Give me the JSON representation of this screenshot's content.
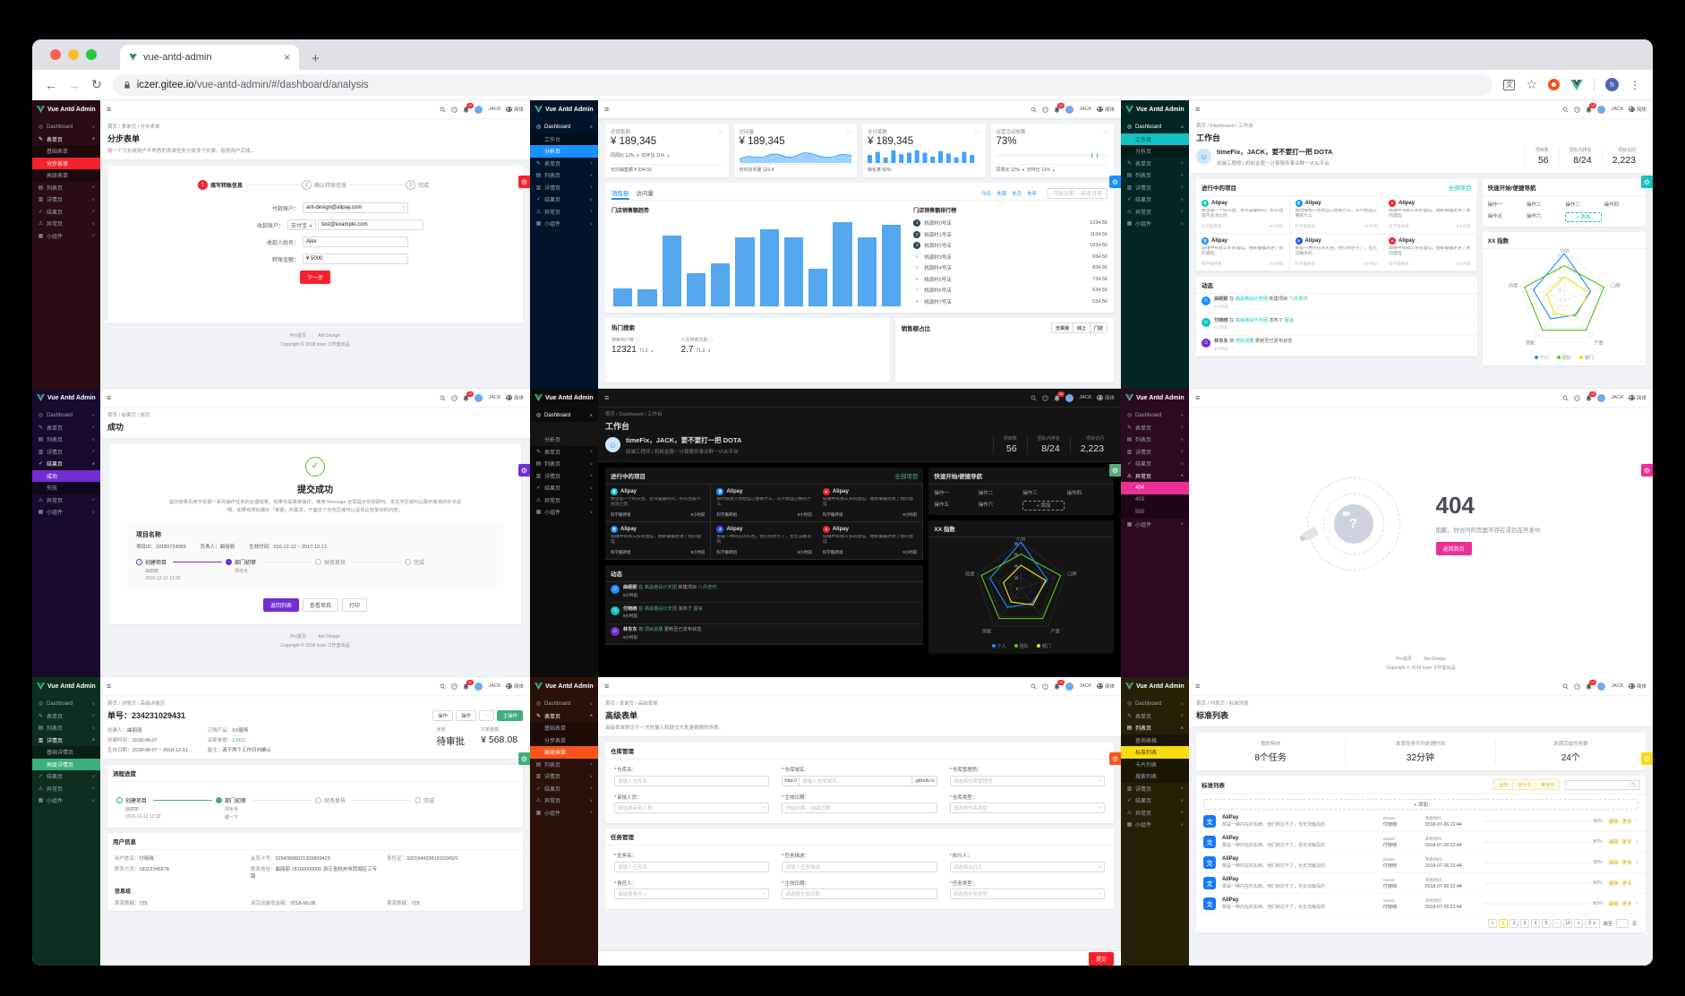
{
  "browser": {
    "tab_title": "vue-antd-admin",
    "url_domain": "iczer.gitee.io",
    "url_path": "/vue-antd-admin/#/dashboard/analysis",
    "avatar": "h",
    "translate_glyph": "文"
  },
  "glyphs": {
    "back": "←",
    "forward": "→",
    "reload": "↻",
    "burger": "≡",
    "kebab": "⋮",
    "star": "☆",
    "plus": "+",
    "close": "×",
    "gear": "⚙",
    "check": "✓",
    "question": "?",
    "smile": "☺",
    "info": "ⓘ",
    "caret": "∨",
    "up": "▲",
    "down": "▼"
  },
  "common": {
    "logo": "Vue Antd Admin",
    "user": "JACK",
    "badge": "12",
    "lang": "简体",
    "footer_home": "Pro首页",
    "footer_brand": "Ant Design",
    "copyright": "Copyright © 2018 iczer 工作室出品"
  },
  "p1": {
    "menu": [
      {
        "icon": "◎",
        "label": "Dashboard",
        "car": "∨"
      },
      {
        "icon": "✎",
        "label": "表单页",
        "car": "∧",
        "cls": "open"
      },
      {
        "label": "基础表单",
        "cls": "sub"
      },
      {
        "label": "分步表单",
        "cls": "sub active"
      },
      {
        "label": "高级表单",
        "cls": "sub"
      },
      {
        "icon": "▤",
        "label": "列表页",
        "car": "∨"
      },
      {
        "icon": "▥",
        "label": "详情页",
        "car": "∨"
      },
      {
        "icon": "✓",
        "label": "结果页",
        "car": "∨"
      },
      {
        "icon": "⚠",
        "label": "异常页",
        "car": "∨"
      },
      {
        "icon": "▦",
        "label": "小组件",
        "car": "∨"
      }
    ],
    "crumb": "首页 / 表单页 / 分步表单",
    "title": "分步表单",
    "desc": "将一个冗长或用户不熟悉的表单任务分成多个步骤，指导用户完成。",
    "steps": [
      {
        "n": "1",
        "label": "填写转账信息",
        "cls": "active"
      },
      {
        "n": "2",
        "label": "确认转账信息"
      },
      {
        "n": "3",
        "label": "完成"
      }
    ],
    "form": [
      {
        "label": "付款账户：",
        "value": "ant-design@alipay.com",
        "car": "∨"
      },
      {
        "label": "收款账户：",
        "pre": "支付宝 ∨",
        "value": "test@example.com",
        "cls": "haspre"
      },
      {
        "label": "收款人姓名：",
        "value": "Alex"
      },
      {
        "label": "转账金额：",
        "value": "¥ 5000"
      }
    ],
    "next": "下一步"
  },
  "p2": {
    "menu": [
      {
        "icon": "◎",
        "label": "Dashboard",
        "car": "∧",
        "cls": "open"
      },
      {
        "label": "工作台",
        "cls": "sub"
      },
      {
        "label": "分析页",
        "cls": "sub active"
      },
      {
        "icon": "✎",
        "label": "表单页",
        "car": "∨"
      },
      {
        "icon": "▤",
        "label": "列表页",
        "car": "∨"
      },
      {
        "icon": "▥",
        "label": "详情页",
        "car": "∨"
      },
      {
        "icon": "✓",
        "label": "结果页",
        "car": "∨"
      },
      {
        "icon": "⚠",
        "label": "异常页",
        "car": "∨"
      },
      {
        "icon": "▦",
        "label": "小组件",
        "car": "∨"
      }
    ],
    "c1": {
      "title": "总销售额",
      "value": "¥ 189,345",
      "w": "同周比 12%",
      "d": "日环比 11%",
      "foot": "日均销售额 ¥ 234.56"
    },
    "c2": {
      "title": "访问量",
      "value": "¥ 189,345",
      "foot": "日均访问量 123,4"
    },
    "c3": {
      "title": "支付笔数",
      "value": "¥ 189,345",
      "foot": "转化率 60%"
    },
    "c4": {
      "title": "运营活动效果",
      "value": "73%",
      "w": "同周比 12%",
      "d": "日环比 11%",
      "progress": 73
    },
    "tabs": {
      "t1": "销售额",
      "t2": "访问量"
    },
    "ranges": [
      "今日",
      "本周",
      "本月",
      "本年"
    ],
    "date": "开始日期 ~ 结束日期",
    "chart": {
      "title": "门店销售额趋势",
      "bars": [
        20,
        19,
        80,
        37,
        48,
        78,
        87,
        78,
        42,
        95,
        78,
        92
      ]
    },
    "rank": {
      "title": "门店销售额排行榜",
      "items": [
        {
          "r": "1",
          "name": "桃源村0号店",
          "val": "1234.56",
          "cls": "top"
        },
        {
          "r": "2",
          "name": "桃源村1号店",
          "val": "1134.56",
          "cls": "top"
        },
        {
          "r": "3",
          "name": "桃源村2号店",
          "val": "1034.56",
          "cls": "top"
        },
        {
          "r": "4",
          "name": "桃源村3号店",
          "val": "934.56"
        },
        {
          "r": "5",
          "name": "桃源村4号店",
          "val": "834.56"
        },
        {
          "r": "6",
          "name": "桃源村5号店",
          "val": "734.56"
        },
        {
          "r": "7",
          "name": "桃源村6号店",
          "val": "634.56"
        },
        {
          "r": "8",
          "name": "桃源村7号店",
          "val": "534.56"
        }
      ]
    },
    "hot": {
      "title": "热门搜索",
      "m1l": "搜索用户数",
      "m1v": "12321",
      "m1d": "71.2",
      "m2l": "人均搜索次数",
      "m2v": "2.7",
      "m2d": "71.2"
    },
    "share": {
      "title": "销售额占比",
      "seg": [
        "全渠道",
        "线上",
        "门店"
      ]
    }
  },
  "ws": {
    "menu": [
      {
        "icon": "◎",
        "label": "Dashboard",
        "car": "∧",
        "cls": "open"
      },
      {
        "label": "工作台",
        "cls": "sub active"
      },
      {
        "label": "分析页",
        "cls": "sub"
      },
      {
        "icon": "✎",
        "label": "表单页",
        "car": "∨"
      },
      {
        "icon": "▤",
        "label": "列表页",
        "car": "∨"
      },
      {
        "icon": "▥",
        "label": "详情页",
        "car": "∨"
      },
      {
        "icon": "✓",
        "label": "结果页",
        "car": "∨"
      },
      {
        "icon": "⚠",
        "label": "异常页",
        "car": "∨"
      },
      {
        "icon": "▦",
        "label": "小组件",
        "car": "∨"
      }
    ],
    "crumb": "首页 / Dashboard / 工作台",
    "title": "工作台",
    "hello": "timeFix，JACK，要不要打一把 DOTA",
    "role": "前端工程师 | 蚂蚁金服－计算服务事业群－VUE平台",
    "stats": [
      {
        "l": "项目数",
        "v": "56"
      },
      {
        "l": "团队内排名",
        "v": "8/24"
      },
      {
        "l": "项目访问",
        "v": "2,223"
      }
    ],
    "prj_title": "进行中的项目",
    "prj_name": "Alipay",
    "all": "全部项目",
    "team": "科学搬砖组",
    "time": "9小时前",
    "projects": [
      {
        "bg": "#13c2c2",
        "ch": "支",
        "desc": "希望是一个好东西，也许是最好的，好东西是不会消亡的"
      },
      {
        "bg": "#1890ff",
        "ch": "支",
        "desc": "那时候我只会想自己想要什么，从不想自己拥有什么"
      },
      {
        "bg": "#f5222d",
        "ch": "A",
        "desc": "城镇中有那么多的酒馆，她却偏偏走进了我的酒馆"
      },
      {
        "bg": "#1890ff",
        "ch": "支",
        "desc": "城镇中有那么多的酒馆，她却偏偏走进了我的酒馆"
      },
      {
        "bg": "#2f54eb",
        "ch": "A",
        "desc": "那是一种内在的东西，他们到达不了，也无法触及的"
      },
      {
        "bg": "#f5222d",
        "ch": "A",
        "desc": "城镇中有那么多的酒馆，她却偏偏走进了我的酒馆"
      }
    ],
    "nav_title": "快速开始/便捷导航",
    "ops": [
      {
        "t": "操作一"
      },
      {
        "t": "操作二"
      },
      {
        "t": "操作三"
      },
      {
        "t": "操作四"
      },
      {
        "t": "操作五"
      },
      {
        "t": "操作六"
      },
      {
        "t": "+ 添加",
        "cls": "addb"
      }
    ],
    "radar_title": "XX 指数",
    "axes": [
      "引用",
      "口碑",
      "产量",
      "贡献",
      "热度"
    ],
    "ticks": [
      "80",
      "60",
      "40",
      "20",
      "0"
    ],
    "legend": [
      {
        "c": "#1890ff",
        "t": "个人"
      },
      {
        "c": "#52c41a",
        "t": "团队"
      },
      {
        "c": "#fadb14",
        "t": "部门"
      }
    ],
    "feed_title": "动态",
    "feed": [
      {
        "user": "曲妮妮",
        "pre": "在",
        "g": "高逼格设计天团",
        "act": "新建项目",
        "tgt": "八月迭代",
        "time": "9小时前",
        "av": "#1890ff"
      },
      {
        "user": "付晓晓",
        "pre": "在",
        "g": "高逼格设计天团",
        "act": "发布了",
        "tgt": "留言",
        "time": "9小时前",
        "av": "#13c2c2"
      },
      {
        "user": "林东东",
        "pre": "将",
        "g": "项目进展",
        "act": "更新至已发布状态",
        "tgt": "",
        "time": "9小时前",
        "av": "#722ed1"
      }
    ]
  },
  "p4": {
    "menu": [
      {
        "icon": "◎",
        "label": "Dashboard",
        "car": "∨"
      },
      {
        "icon": "✎",
        "label": "表单页",
        "car": "∨"
      },
      {
        "icon": "▤",
        "label": "列表页",
        "car": "∨"
      },
      {
        "icon": "▥",
        "label": "详情页",
        "car": "∨"
      },
      {
        "icon": "✓",
        "label": "结果页",
        "car": "∧",
        "cls": "open"
      },
      {
        "label": "成功",
        "cls": "sub active"
      },
      {
        "label": "失败",
        "cls": "sub"
      },
      {
        "icon": "⚠",
        "label": "异常页",
        "car": "∨"
      },
      {
        "icon": "▦",
        "label": "小组件",
        "car": "∨"
      }
    ],
    "crumb": "首页 / 结果页 / 成功",
    "title": "成功",
    "result_title": "提交成功",
    "desc": "提交结果页用于反馈一系列操作任务的处理结果，如果仅是简单操作，使用 Message 全局提示反馈即可。本文字区域可以展示简单的补充说明，如果有类似展示「单据」的需求，下面这个灰色区域可以呈现比较复杂的内容。",
    "box_title": "项目名称",
    "box_meta": [
      "项目ID：20180724089",
      "负责人：曲丽丽",
      "生效时间：016-12-12 ~ 2017-12-12"
    ],
    "steps": [
      {
        "label": "创建项目",
        "sub": "曲丽丽",
        "time": "2016-12-12 12:32",
        "cls": "done"
      },
      {
        "label": "部门初审",
        "sub": "周毛毛",
        "time": "",
        "cls": "curr"
      },
      {
        "label": "财务复核",
        "sub": "",
        "time": ""
      },
      {
        "label": "完成",
        "sub": "",
        "time": ""
      }
    ],
    "btns": [
      {
        "t": "返回列表",
        "cls": "primary"
      },
      {
        "t": "查看项目"
      },
      {
        "t": "打印"
      }
    ]
  },
  "p6": {
    "menu": [
      {
        "icon": "◎",
        "label": "Dashboard",
        "car": "∨"
      },
      {
        "icon": "✎",
        "label": "表单页",
        "car": "∨"
      },
      {
        "icon": "▤",
        "label": "列表页",
        "car": "∨"
      },
      {
        "icon": "▥",
        "label": "详情页",
        "car": "∨"
      },
      {
        "icon": "✓",
        "label": "结果页",
        "car": "∨"
      },
      {
        "icon": "⚠",
        "label": "异常页",
        "car": "∧",
        "cls": "open"
      },
      {
        "label": "404",
        "cls": "sub active"
      },
      {
        "label": "403",
        "cls": "sub"
      },
      {
        "label": "500",
        "cls": "sub"
      },
      {
        "icon": "▦",
        "label": "小组件",
        "car": "∨"
      }
    ],
    "code": "404",
    "msg": "抱歉，你访问的页面不存在或仍在开发中",
    "btn": "返回首页"
  },
  "p7": {
    "menu": [
      {
        "icon": "◎",
        "label": "Dashboard",
        "car": "∨"
      },
      {
        "icon": "✎",
        "label": "表单页",
        "car": "∨"
      },
      {
        "icon": "▤",
        "label": "列表页",
        "car": "∨"
      },
      {
        "icon": "▥",
        "label": "详情页",
        "car": "∧",
        "cls": "open"
      },
      {
        "label": "基础详情页",
        "cls": "sub"
      },
      {
        "label": "高级详情页",
        "cls": "sub active"
      },
      {
        "icon": "✓",
        "label": "结果页",
        "car": "∨"
      },
      {
        "icon": "⚠",
        "label": "异常页",
        "car": "∨"
      },
      {
        "icon": "▦",
        "label": "小组件",
        "car": "∨"
      }
    ],
    "crumb": "首页 / 详情页 / 高级详情页",
    "title": "单号：234231029431",
    "acts": [
      "操作",
      "操作",
      "⋯"
    ],
    "main_act": "主操作",
    "meta": [
      {
        "k": "创建人：",
        "v": "曲丽丽"
      },
      {
        "k": "订购产品：",
        "v": "XX服务"
      },
      {
        "k": "创建时间：",
        "v": "2018-06-07"
      },
      {
        "k": "关联单据：",
        "v": "12421",
        "cls": "link"
      },
      {
        "k": "生效日期：",
        "v": "2018-06-07 ~ 2018-12-11"
      },
      {
        "k": "备注：",
        "v": "请于两个工作日内确认"
      }
    ],
    "st_l": "状态",
    "st_v": "待审批",
    "amt_l": "订单金额",
    "amt_v": "¥ 568.08",
    "flow_title": "流程进度",
    "steps": [
      {
        "label": "创建项目",
        "sub": "曲丽丽",
        "time": "2016-12-12 12:32",
        "cls": "done"
      },
      {
        "label": "部门初审",
        "sub": "周毛毛",
        "time": "催一下",
        "cls": "curr"
      },
      {
        "label": "财务复核",
        "sub": "",
        "time": ""
      },
      {
        "label": "完成",
        "sub": "",
        "time": ""
      }
    ],
    "user_title": "用户信息",
    "info": [
      {
        "k": "用户姓名：",
        "v": "付晓晓"
      },
      {
        "k": "会员卡号：",
        "v": "32943898021309809423"
      },
      {
        "k": "身份证：",
        "v": "3321944288191034921"
      },
      {
        "k": "联系方式：",
        "v": "18112345678"
      },
      {
        "k": "联系地址：",
        "v": "曲丽丽 18100000000 浙江省杭州市西湖区工专路"
      }
    ],
    "group_title": "信息组",
    "info2": [
      {
        "k": "某某数据：",
        "v": "725"
      },
      {
        "k": "该活动最低金额：",
        "v": "2018-08-08"
      },
      {
        "k": "某某数据：",
        "v": "725"
      }
    ]
  },
  "p8": {
    "menu": [
      {
        "icon": "◎",
        "label": "Dashboard",
        "car": "∨"
      },
      {
        "icon": "✎",
        "label": "表单页",
        "car": "∧",
        "cls": "open"
      },
      {
        "label": "基础表单",
        "cls": "sub"
      },
      {
        "label": "分步表单",
        "cls": "sub"
      },
      {
        "label": "高级表单",
        "cls": "sub active"
      },
      {
        "icon": "▤",
        "label": "列表页",
        "car": "∨"
      },
      {
        "icon": "▥",
        "label": "详情页",
        "car": "∨"
      },
      {
        "icon": "✓",
        "label": "结果页",
        "car": "∨"
      },
      {
        "icon": "⚠",
        "label": "异常页",
        "car": "∨"
      },
      {
        "icon": "▦",
        "label": "小组件",
        "car": "∨"
      }
    ],
    "crumb": "首页 / 表单页 / 高级表单",
    "title": "高级表单",
    "desc": "高级表单常见于一次性输入和提交大批量数据的场景。",
    "c1": "仓库管理",
    "f1": [
      {
        "label": "仓库名：",
        "ph": "请输入仓库名"
      },
      {
        "label": "仓库域名：",
        "ph": "请输入仓库域名",
        "pre": "http://",
        "suf": ".github.io",
        "cls": "domain"
      },
      {
        "label": "仓库管理员：",
        "ph": "请选择仓库管理员",
        "cls": "sel"
      },
      {
        "label": "审批人员：",
        "ph": "请选择审批人员",
        "cls": "sel"
      },
      {
        "label": "生效日期：",
        "ph": "开始日期 ~ 结束日期"
      },
      {
        "label": "仓库类型：",
        "ph": "请选择仓库类型",
        "cls": "sel"
      }
    ],
    "c2": "任务管理",
    "f2": [
      {
        "label": "任务名：",
        "ph": "请输入任务名"
      },
      {
        "label": "任务描述：",
        "ph": "请输入任务描述"
      },
      {
        "label": "执行人：",
        "ph": "请选择执行人",
        "cls": "sel"
      },
      {
        "label": "责任人：",
        "ph": "请选择责任人",
        "cls": "sel"
      },
      {
        "label": "生效日期：",
        "ph": "请选择生效日期"
      },
      {
        "label": "任务类型：",
        "ph": "请选择任务类型",
        "cls": "sel"
      }
    ],
    "submit": "提交"
  },
  "p9": {
    "menu": [
      {
        "icon": "◎",
        "label": "Dashboard",
        "car": "∨"
      },
      {
        "icon": "✎",
        "label": "表单页",
        "car": "∨"
      },
      {
        "icon": "▤",
        "label": "列表页",
        "car": "∧",
        "cls": "open"
      },
      {
        "label": "查询表格",
        "cls": "sub"
      },
      {
        "label": "标准列表",
        "cls": "sub active"
      },
      {
        "label": "卡片列表",
        "cls": "sub"
      },
      {
        "label": "搜索列表",
        "cls": "sub"
      },
      {
        "icon": "▥",
        "label": "详情页",
        "car": "∨"
      },
      {
        "icon": "✓",
        "label": "结果页",
        "car": "∨"
      },
      {
        "icon": "⚠",
        "label": "异常页",
        "car": "∨"
      },
      {
        "icon": "▦",
        "label": "小组件",
        "car": "∨"
      }
    ],
    "crumb": "首页 / 列表页 / 标准列表",
    "title": "标准列表",
    "stats": [
      {
        "l": "我的待办",
        "v": "8个任务"
      },
      {
        "l": "本周任务平均处理时间",
        "v": "32分钟"
      },
      {
        "l": "本周完成任务数",
        "v": "24个"
      }
    ],
    "list_title": "标准列表",
    "segs": [
      "全部",
      "进行中",
      "等待中"
    ],
    "add": "+ 添加",
    "rows": [
      {
        "name": "AliPay",
        "desc": "那是一种内在的东西，他们到达不了，也无法触及的",
        "ol": "Owner",
        "o": "付晓晓",
        "tl": "开始时间",
        "t": "2018-07-26 22:44",
        "p": 80,
        "pt": "80%",
        "e": "编辑",
        "m": "更多"
      },
      {
        "name": "AliPay",
        "desc": "那是一种内在的东西，他们到达不了，也无法触及的",
        "ol": "Owner",
        "o": "付晓晓",
        "tl": "开始时间",
        "t": "2018-07-26 22:44",
        "p": 80,
        "pt": "80%",
        "e": "编辑",
        "m": "更多"
      },
      {
        "name": "AliPay",
        "desc": "那是一种内在的东西，他们到达不了，也无法触及的",
        "ol": "Owner",
        "o": "付晓晓",
        "tl": "开始时间",
        "t": "2018-07-26 22:44",
        "p": 80,
        "pt": "80%",
        "e": "编辑",
        "m": "更多"
      },
      {
        "name": "AliPay",
        "desc": "那是一种内在的东西，他们到达不了，也无法触及的",
        "ol": "Owner",
        "o": "付晓晓",
        "tl": "开始时间",
        "t": "2018-07-26 22:44",
        "p": 80,
        "pt": "80%",
        "e": "编辑",
        "m": "更多"
      },
      {
        "name": "AliPay",
        "desc": "那是一种内在的东西，他们到达不了，也无法触及的",
        "ol": "Owner",
        "o": "付晓晓",
        "tl": "开始时间",
        "t": "2018-07-26 22:44",
        "p": 80,
        "pt": "80%",
        "e": "编辑",
        "m": "更多"
      }
    ],
    "pages": [
      {
        "t": "<"
      },
      {
        "t": "1",
        "cls": "on"
      },
      {
        "t": "2"
      },
      {
        "t": "3"
      },
      {
        "t": "4"
      },
      {
        "t": "5"
      },
      {
        "t": "···"
      },
      {
        "t": "10"
      },
      {
        "t": ">"
      }
    ],
    "psize": "5 ∨",
    "jump": "跳至",
    "page": "页"
  }
}
